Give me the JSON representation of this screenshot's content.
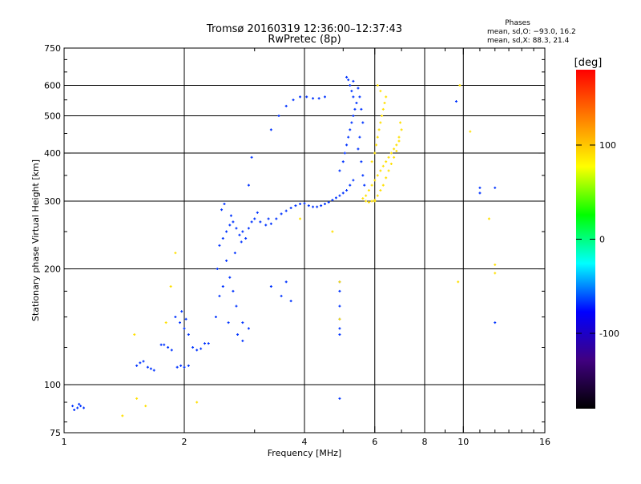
{
  "chart_data": {
    "type": "scatter",
    "title": "Tromsø 20160319 12:36:00–12:37:43",
    "subtitle": "RwPretec (8p)",
    "xlabel": "Frequency [MHz]",
    "ylabel": "Stationary phase Virtual Height [km]",
    "xscale": "log",
    "yscale": "log",
    "xlim": [
      1,
      16
    ],
    "ylim": [
      75,
      750
    ],
    "x_ticks": [
      1,
      2,
      4,
      6,
      8,
      10,
      16
    ],
    "x_minor_ticks": [
      3,
      5,
      7,
      9,
      11,
      12,
      13,
      14,
      15
    ],
    "y_ticks": [
      75,
      100,
      200,
      300,
      400,
      500,
      600,
      750
    ],
    "y_minor_ticks": [
      80,
      90,
      125,
      150,
      175,
      250,
      350,
      450,
      550,
      650,
      700
    ],
    "grid_x": [
      2,
      4,
      6,
      8,
      10
    ],
    "grid_y": [
      100,
      200,
      300,
      400,
      500,
      600
    ],
    "stats": {
      "title": "Phases",
      "line_o": "mean, sd,O: −93.0, 16.2",
      "line_x": "mean, sd,X:  88.3, 21.4"
    },
    "colorbar": {
      "label": "[deg]",
      "range": [
        -180,
        180
      ],
      "ticks": [
        {
          "value": 100,
          "label": "100"
        },
        {
          "value": 0,
          "label": "0"
        },
        {
          "value": -100,
          "label": "-100"
        }
      ],
      "colors": [
        "#ff0000",
        "#ff8000",
        "#ffff00",
        "#00ff00",
        "#00ffff",
        "#0000ff",
        "#400080",
        "#000000"
      ]
    },
    "point_color": "#0033ff",
    "points": [
      [
        1.05,
        88
      ],
      [
        1.08,
        87
      ],
      [
        1.1,
        88
      ],
      [
        1.12,
        87
      ],
      [
        1.06,
        86
      ],
      [
        1.09,
        89
      ],
      [
        1.52,
        112
      ],
      [
        1.55,
        114
      ],
      [
        1.58,
        115
      ],
      [
        1.62,
        111
      ],
      [
        1.65,
        110
      ],
      [
        1.68,
        109
      ],
      [
        1.75,
        127
      ],
      [
        1.78,
        127
      ],
      [
        1.82,
        125
      ],
      [
        1.86,
        123
      ],
      [
        1.92,
        111
      ],
      [
        1.96,
        112
      ],
      [
        2.0,
        111
      ],
      [
        2.05,
        112
      ],
      [
        2.1,
        125
      ],
      [
        2.15,
        123
      ],
      [
        2.2,
        124
      ],
      [
        2.25,
        128
      ],
      [
        2.3,
        128
      ],
      [
        1.9,
        150
      ],
      [
        1.95,
        145
      ],
      [
        2.0,
        140
      ],
      [
        2.05,
        135
      ],
      [
        1.97,
        155
      ],
      [
        2.02,
        148
      ],
      [
        2.4,
        150
      ],
      [
        2.45,
        170
      ],
      [
        2.5,
        180
      ],
      [
        2.42,
        200
      ],
      [
        2.55,
        210
      ],
      [
        2.6,
        190
      ],
      [
        2.65,
        175
      ],
      [
        2.7,
        160
      ],
      [
        2.58,
        145
      ],
      [
        2.72,
        135
      ],
      [
        2.8,
        130
      ],
      [
        2.68,
        220
      ],
      [
        2.45,
        230
      ],
      [
        2.5,
        240
      ],
      [
        2.55,
        250
      ],
      [
        2.6,
        260
      ],
      [
        2.65,
        265
      ],
      [
        2.7,
        255
      ],
      [
        2.75,
        245
      ],
      [
        2.8,
        250
      ],
      [
        2.48,
        285
      ],
      [
        2.52,
        295
      ],
      [
        2.62,
        275
      ],
      [
        2.78,
        235
      ],
      [
        2.85,
        240
      ],
      [
        2.9,
        255
      ],
      [
        2.95,
        265
      ],
      [
        3.0,
        270
      ],
      [
        3.1,
        265
      ],
      [
        3.2,
        260
      ],
      [
        3.3,
        262
      ],
      [
        3.4,
        270
      ],
      [
        3.5,
        278
      ],
      [
        3.6,
        283
      ],
      [
        3.7,
        288
      ],
      [
        3.8,
        292
      ],
      [
        3.9,
        295
      ],
      [
        4.0,
        296
      ],
      [
        4.1,
        292
      ],
      [
        4.2,
        290
      ],
      [
        4.3,
        290
      ],
      [
        4.4,
        292
      ],
      [
        4.5,
        295
      ],
      [
        4.6,
        298
      ],
      [
        4.7,
        302
      ],
      [
        4.8,
        306
      ],
      [
        4.9,
        310
      ],
      [
        5.0,
        315
      ],
      [
        5.1,
        320
      ],
      [
        5.2,
        330
      ],
      [
        5.3,
        340
      ],
      [
        4.9,
        360
      ],
      [
        5.0,
        380
      ],
      [
        5.05,
        400
      ],
      [
        5.1,
        420
      ],
      [
        5.15,
        440
      ],
      [
        5.2,
        460
      ],
      [
        5.25,
        480
      ],
      [
        5.3,
        500
      ],
      [
        5.35,
        520
      ],
      [
        5.4,
        540
      ],
      [
        5.3,
        560
      ],
      [
        5.25,
        580
      ],
      [
        5.2,
        600
      ],
      [
        5.15,
        620
      ],
      [
        5.1,
        630
      ],
      [
        5.3,
        615
      ],
      [
        5.45,
        590
      ],
      [
        5.5,
        560
      ],
      [
        5.55,
        520
      ],
      [
        5.6,
        480
      ],
      [
        5.5,
        440
      ],
      [
        5.45,
        410
      ],
      [
        5.55,
        380
      ],
      [
        5.6,
        350
      ],
      [
        5.65,
        330
      ],
      [
        3.3,
        460
      ],
      [
        3.45,
        500
      ],
      [
        3.6,
        530
      ],
      [
        3.75,
        550
      ],
      [
        3.9,
        560
      ],
      [
        4.05,
        560
      ],
      [
        4.2,
        555
      ],
      [
        4.35,
        555
      ],
      [
        4.5,
        560
      ],
      [
        2.95,
        390
      ],
      [
        2.9,
        330
      ],
      [
        3.05,
        280
      ],
      [
        3.25,
        270
      ],
      [
        3.6,
        185
      ],
      [
        3.7,
        165
      ],
      [
        3.3,
        180
      ],
      [
        3.5,
        170
      ],
      [
        2.8,
        145
      ],
      [
        2.9,
        140
      ],
      [
        4.9,
        92
      ],
      [
        4.9,
        185
      ],
      [
        4.9,
        175
      ],
      [
        4.9,
        160
      ],
      [
        4.9,
        148
      ],
      [
        4.9,
        140
      ],
      [
        4.9,
        135
      ],
      [
        9.6,
        545
      ],
      [
        11.0,
        325
      ],
      [
        11.0,
        315
      ],
      [
        12.0,
        325
      ],
      [
        12.0,
        145
      ]
    ],
    "warm_point_color": "#ffe000",
    "warm_points": [
      [
        5.7,
        310
      ],
      [
        5.8,
        320
      ],
      [
        5.9,
        330
      ],
      [
        6.0,
        340
      ],
      [
        6.1,
        350
      ],
      [
        6.2,
        360
      ],
      [
        6.3,
        370
      ],
      [
        6.4,
        380
      ],
      [
        6.5,
        390
      ],
      [
        6.6,
        400
      ],
      [
        6.7,
        410
      ],
      [
        6.8,
        420
      ],
      [
        6.9,
        430
      ],
      [
        6.0,
        300
      ],
      [
        6.1,
        310
      ],
      [
        6.2,
        320
      ],
      [
        6.3,
        330
      ],
      [
        6.4,
        345
      ],
      [
        6.5,
        360
      ],
      [
        6.6,
        375
      ],
      [
        6.7,
        390
      ],
      [
        6.8,
        405
      ],
      [
        6.9,
        440
      ],
      [
        7.0,
        460
      ],
      [
        6.95,
        480
      ],
      [
        5.9,
        380
      ],
      [
        6.0,
        400
      ],
      [
        6.05,
        420
      ],
      [
        6.1,
        440
      ],
      [
        6.15,
        460
      ],
      [
        6.2,
        480
      ],
      [
        6.25,
        500
      ],
      [
        6.3,
        520
      ],
      [
        6.35,
        540
      ],
      [
        6.4,
        560
      ],
      [
        6.2,
        580
      ],
      [
        6.1,
        600
      ],
      [
        5.6,
        305
      ],
      [
        5.7,
        300
      ],
      [
        5.8,
        298
      ],
      [
        5.9,
        300
      ],
      [
        6.0,
        302
      ],
      [
        4.7,
        250
      ],
      [
        3.9,
        270
      ],
      [
        11.6,
        270
      ],
      [
        12.0,
        195
      ],
      [
        12.0,
        205
      ],
      [
        9.7,
        185
      ],
      [
        9.8,
        600
      ],
      [
        10.4,
        455
      ],
      [
        1.5,
        135
      ],
      [
        1.52,
        92
      ],
      [
        1.4,
        83
      ],
      [
        1.6,
        88
      ],
      [
        1.8,
        145
      ],
      [
        1.85,
        180
      ],
      [
        1.9,
        220
      ],
      [
        2.15,
        90
      ],
      [
        4.9,
        185
      ],
      [
        4.9,
        148
      ]
    ]
  }
}
